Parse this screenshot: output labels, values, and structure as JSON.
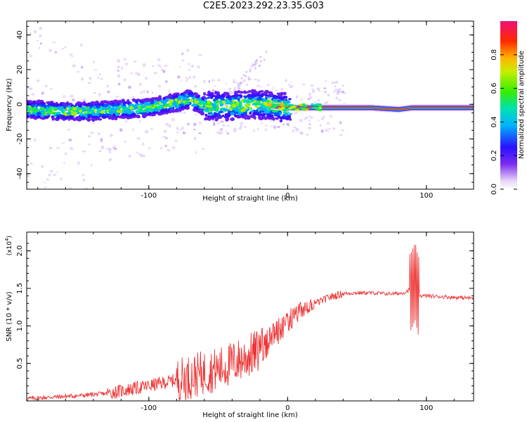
{
  "title": "C2E5.2023.292.23.35.G03",
  "chart_data": [
    {
      "type": "heatmap",
      "xlabel": "Height of straight line (km)",
      "ylabel": "Frequency (Hz)",
      "xlim": [
        -188,
        134
      ],
      "ylim": [
        -49,
        48
      ],
      "xticks": [
        -100,
        0,
        100
      ],
      "yticks": [
        -40,
        -20,
        0,
        20,
        40
      ],
      "colorbar": {
        "label": "Normalized spectral amplitude",
        "range": [
          0,
          1
        ],
        "ticks": [
          0.0,
          0.2,
          0.4,
          0.6,
          0.8
        ]
      },
      "ridge": [
        {
          "x": -188,
          "y": -3
        },
        {
          "x": -160,
          "y": -4
        },
        {
          "x": -140,
          "y": -4
        },
        {
          "x": -120,
          "y": -3
        },
        {
          "x": -100,
          "y": -2
        },
        {
          "x": -80,
          "y": 1
        },
        {
          "x": -70,
          "y": 3
        },
        {
          "x": -60,
          "y": -1
        },
        {
          "x": -40,
          "y": -1
        },
        {
          "x": -25,
          "y": 0
        },
        {
          "x": -10,
          "y": -1
        },
        {
          "x": 0,
          "y": -2
        },
        {
          "x": 20,
          "y": -2
        },
        {
          "x": 60,
          "y": -2
        },
        {
          "x": 80,
          "y": -3
        },
        {
          "x": 90,
          "y": -2
        },
        {
          "x": 134,
          "y": -2
        }
      ]
    },
    {
      "type": "line",
      "xlabel": "Height of straight line (km)",
      "ylabel": "SNR (10 * v/v)",
      "y_multiplier": "(x10",
      "y_multiplier_exp": "4",
      "y_multiplier_close": ")",
      "xlim": [
        -188,
        134
      ],
      "ylim": [
        0.0,
        2.25
      ],
      "xticks": [
        -100,
        0,
        100
      ],
      "yticks": [
        0.5,
        1.0,
        1.5,
        2.0
      ],
      "color": "#ee3333",
      "series": [
        {
          "x": [
            -188,
            -170,
            -150,
            -130,
            -115,
            -100,
            -90,
            -80,
            -70,
            -60,
            -50,
            -40,
            -30,
            -20,
            -10,
            0,
            10,
            20,
            30,
            40,
            50,
            60,
            70,
            80,
            85,
            89,
            92,
            94,
            96,
            100,
            110,
            120,
            134
          ],
          "y": [
            0.03,
            0.05,
            0.07,
            0.1,
            0.15,
            0.2,
            0.24,
            0.28,
            0.32,
            0.38,
            0.42,
            0.5,
            0.58,
            0.68,
            0.85,
            1.05,
            1.2,
            1.3,
            1.38,
            1.43,
            1.44,
            1.44,
            1.43,
            1.43,
            1.45,
            1.5,
            1.62,
            1.42,
            1.4,
            1.4,
            1.39,
            1.38,
            1.37
          ]
        }
      ]
    }
  ]
}
